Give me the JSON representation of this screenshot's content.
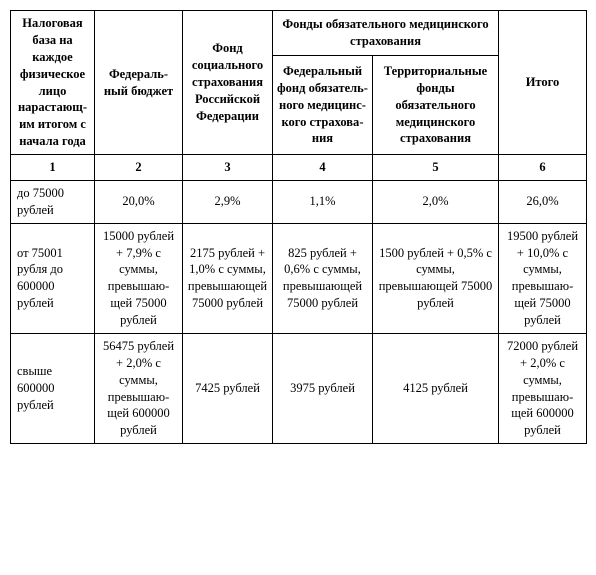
{
  "table": {
    "headers": {
      "col1": "Налоговая база на каждое физическое лицо нарастающ­им итогом с начала года",
      "col2": "Федераль­ный бюджет",
      "col3": "Фонд социаль­ного страхова­ния Российс­кой Федерации",
      "group45_top": "Фонды обязательного медицинского страхования",
      "col4": "Федераль­ный фонд обязатель­ного медицинс­кого страхова­ния",
      "col5": "Территориаль­ные фонды обязательного медицинского страхования",
      "col6": "Итого"
    },
    "numrow": {
      "c1": "1",
      "c2": "2",
      "c3": "3",
      "c4": "4",
      "c5": "5",
      "c6": "6"
    },
    "rows": [
      {
        "c1": "до 75000 рублей",
        "c2": "20,0%",
        "c3": "2,9%",
        "c4": "1,1%",
        "c5": "2,0%",
        "c6": "26,0%"
      },
      {
        "c1": "от 75001 рубля до 600000 рублей",
        "c2": "15000 рублей + 7,9% с суммы, превышаю­щей 75000 рублей",
        "c3": "2175 рублей + 1,0% с суммы, превышаю­щей 75000 рублей",
        "c4": "825 рублей + 0,6% с суммы, превышаю­щей 75000 рублей",
        "c5": "1500 рублей + 0,5% с суммы, превышающей 75000 рублей",
        "c6": "19500 рублей + 10,0% с суммы, превышаю­щей 75000 рублей"
      },
      {
        "c1": "свыше 600000 рублей",
        "c2": "56475 рублей + 2,0% с суммы, превышаю­щей 600000 рублей",
        "c3": "7425 рублей",
        "c4": "3975 рублей",
        "c5": "4125 рублей",
        "c6": "72000 рублей + 2,0% с суммы, превышаю­щей 600000 рублей"
      }
    ]
  }
}
